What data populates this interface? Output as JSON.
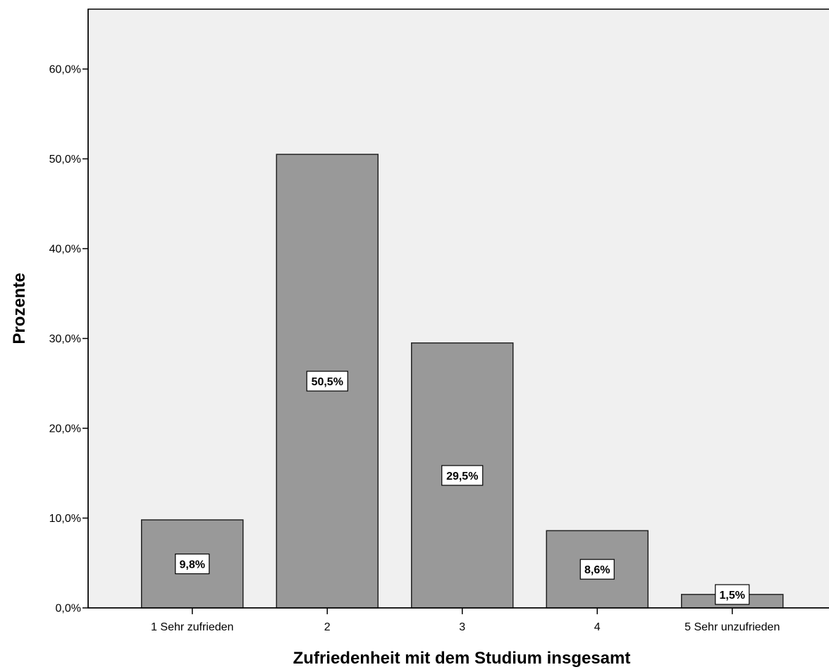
{
  "chart_data": {
    "type": "bar",
    "title": "",
    "xlabel": "Zufriedenheit mit dem Studium insgesamt",
    "ylabel": "Prozente",
    "categories": [
      "1 Sehr zufrieden",
      "2",
      "3",
      "4",
      "5 Sehr unzufrieden"
    ],
    "values": [
      9.8,
      50.5,
      29.5,
      8.6,
      1.5
    ],
    "data_labels": [
      "9,8%",
      "50,5%",
      "29,5%",
      "8,6%",
      "1,5%"
    ],
    "yticks": [
      0,
      10,
      20,
      30,
      40,
      50,
      60
    ],
    "ytick_labels": [
      "0,0%",
      "10,0%",
      "20,0%",
      "30,0%",
      "40,0%",
      "50,0%",
      "60,0%"
    ],
    "ylim": [
      0,
      60
    ],
    "grid": false,
    "legend": "none",
    "colors": {
      "bar_fill": "#999999",
      "bar_stroke": "#222222",
      "plot_background": "#f0f0f0",
      "label_box_fill": "#ffffff"
    }
  }
}
